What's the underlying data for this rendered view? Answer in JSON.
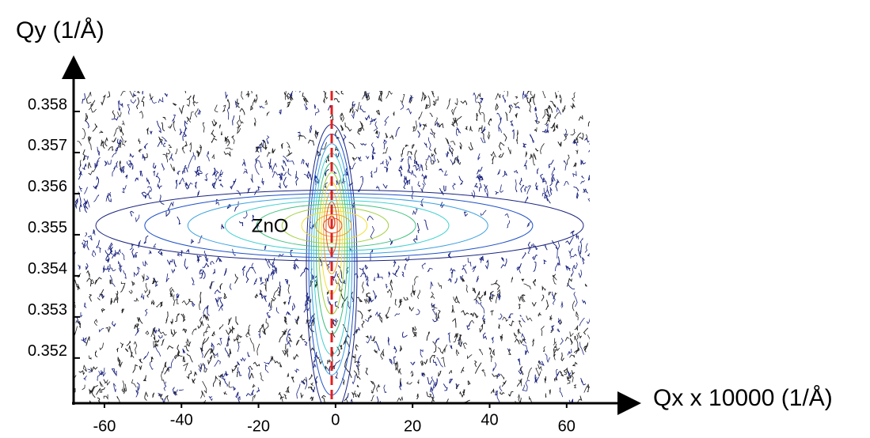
{
  "chart_data": {
    "type": "contour",
    "xlabel": "Qx x 10000 (1/Å)",
    "ylabel": "Qy (1/Å)",
    "xlim": [
      -68,
      66
    ],
    "ylim": [
      0.3509,
      0.3585
    ],
    "xticks": [
      -60,
      -40,
      -20,
      0,
      20,
      40,
      60
    ],
    "yticks": [
      0.352,
      0.353,
      0.354,
      0.355,
      0.356,
      0.357,
      0.358
    ],
    "peak": {
      "x": -1,
      "y": 0.3553
    },
    "reference_line": {
      "x": -1,
      "color": "#e02020",
      "style": "dashed"
    },
    "annotations": [
      {
        "text": "ZnO",
        "x": -17,
        "y": 0.355
      }
    ],
    "contour_colors": [
      "#1a237e",
      "#1e50c8",
      "#3aa0e0",
      "#40d0d0",
      "#40c080",
      "#a0d040",
      "#f0e030",
      "#f0a020",
      "#e05020"
    ]
  }
}
